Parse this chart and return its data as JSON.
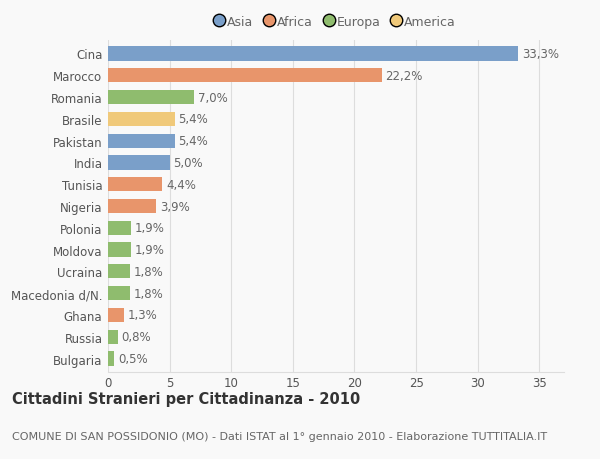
{
  "categories": [
    "Bulgaria",
    "Russia",
    "Ghana",
    "Macedonia d/N.",
    "Ucraina",
    "Moldova",
    "Polonia",
    "Nigeria",
    "Tunisia",
    "India",
    "Pakistan",
    "Brasile",
    "Romania",
    "Marocco",
    "Cina"
  ],
  "values": [
    0.5,
    0.8,
    1.3,
    1.8,
    1.8,
    1.9,
    1.9,
    3.9,
    4.4,
    5.0,
    5.4,
    5.4,
    7.0,
    22.2,
    33.3
  ],
  "labels": [
    "0,5%",
    "0,8%",
    "1,3%",
    "1,8%",
    "1,8%",
    "1,9%",
    "1,9%",
    "3,9%",
    "4,4%",
    "5,0%",
    "5,4%",
    "5,4%",
    "7,0%",
    "22,2%",
    "33,3%"
  ],
  "colors": [
    "#8fbc6e",
    "#8fbc6e",
    "#e8956b",
    "#8fbc6e",
    "#8fbc6e",
    "#8fbc6e",
    "#8fbc6e",
    "#e8956b",
    "#e8956b",
    "#7a9fc9",
    "#7a9fc9",
    "#f0c97a",
    "#8fbc6e",
    "#e8956b",
    "#7a9fc9"
  ],
  "legend": [
    {
      "label": "Asia",
      "color": "#7a9fc9"
    },
    {
      "label": "Africa",
      "color": "#e8956b"
    },
    {
      "label": "Europa",
      "color": "#8fbc6e"
    },
    {
      "label": "America",
      "color": "#f0c97a"
    }
  ],
  "xlim": [
    0,
    37
  ],
  "xticks": [
    0,
    5,
    10,
    15,
    20,
    25,
    30,
    35
  ],
  "title": "Cittadini Stranieri per Cittadinanza - 2010",
  "subtitle": "COMUNE DI SAN POSSIDONIO (MO) - Dati ISTAT al 1° gennaio 2010 - Elaborazione TUTTITALIA.IT",
  "bg_color": "#f9f9f9",
  "grid_color": "#dddddd",
  "bar_height": 0.65,
  "title_fontsize": 10.5,
  "subtitle_fontsize": 8,
  "tick_fontsize": 8.5,
  "label_fontsize": 8.5
}
